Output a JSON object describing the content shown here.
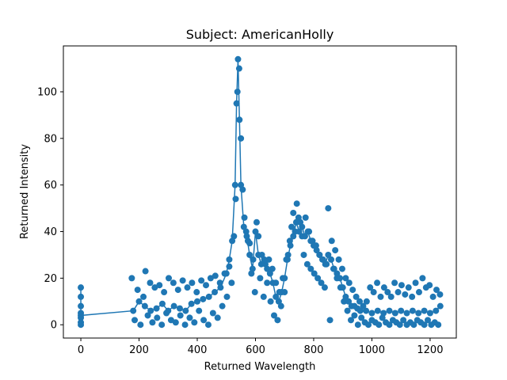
{
  "chart_data": {
    "type": "scatter",
    "title": "Subject: AmericanHolly",
    "xlabel": "Returned Wavelength",
    "ylabel": "Returned Intensity",
    "xlim": [
      -60,
      1290
    ],
    "ylim": [
      -5.7,
      119.7
    ],
    "xticks": [
      0,
      200,
      400,
      600,
      800,
      1000,
      1200
    ],
    "yticks": [
      0,
      20,
      40,
      60,
      80,
      100
    ],
    "grid": false,
    "legend": "none",
    "color": "#1f77b4",
    "series": [
      {
        "style": "line-with-markers",
        "x": [
          0,
          0,
          0,
          0,
          0,
          0,
          0,
          0,
          180,
          200,
          220,
          240,
          260,
          280,
          300,
          320,
          340,
          360,
          380,
          400,
          420,
          440,
          460,
          480,
          500,
          510,
          520,
          530,
          535,
          540,
          545,
          550,
          560,
          570,
          580,
          590,
          600,
          610,
          620,
          630,
          640,
          650,
          660,
          670,
          680,
          690,
          700,
          710,
          720,
          730,
          740,
          750,
          760,
          770,
          780,
          790,
          800,
          810,
          820,
          830,
          840,
          850,
          860,
          870,
          880,
          890,
          900,
          910,
          920,
          930,
          940,
          950,
          960,
          980,
          1000,
          1020,
          1040,
          1060,
          1080,
          1100,
          1120,
          1140,
          1160,
          1180,
          1200,
          1220,
          1235
        ],
        "y": [
          16,
          12,
          8,
          5,
          3,
          1,
          0,
          4,
          6,
          10,
          8,
          6,
          7,
          9,
          6,
          8,
          7,
          6,
          9,
          10,
          11,
          12,
          14,
          16,
          22,
          28,
          36,
          60,
          95,
          114,
          88,
          60,
          42,
          38,
          30,
          24,
          40,
          30,
          26,
          28,
          24,
          22,
          18,
          12,
          10,
          14,
          20,
          28,
          34,
          38,
          44,
          40,
          42,
          38,
          40,
          36,
          34,
          32,
          30,
          28,
          26,
          30,
          28,
          24,
          22,
          20,
          16,
          12,
          10,
          8,
          8,
          7,
          6,
          6,
          5,
          6,
          5,
          6,
          5,
          6,
          5,
          6,
          5,
          6,
          5,
          6,
          8
        ]
      }
    ],
    "scatter_noise": {
      "x": [
        175,
        185,
        195,
        205,
        215,
        222,
        230,
        238,
        246,
        254,
        262,
        270,
        278,
        286,
        294,
        302,
        310,
        318,
        326,
        334,
        342,
        350,
        358,
        366,
        374,
        382,
        390,
        398,
        406,
        414,
        422,
        430,
        438,
        446,
        454,
        462,
        470,
        478,
        486,
        494,
        502,
        510,
        518,
        526,
        532,
        538,
        544,
        550,
        556,
        562,
        568,
        574,
        580,
        586,
        592,
        598,
        604,
        610,
        616,
        622,
        628,
        634,
        640,
        646,
        652,
        658,
        664,
        670,
        676,
        682,
        688,
        694,
        700,
        706,
        712,
        718,
        724,
        730,
        736,
        742,
        748,
        754,
        760,
        766,
        772,
        778,
        784,
        790,
        796,
        802,
        808,
        814,
        820,
        826,
        832,
        838,
        844,
        850,
        856,
        862,
        868,
        874,
        880,
        886,
        892,
        898,
        904,
        910,
        916,
        922,
        928,
        934,
        940,
        946,
        952,
        958,
        964,
        970,
        976,
        982,
        988,
        994,
        1000,
        1006,
        1012,
        1018,
        1024,
        1030,
        1036,
        1042,
        1048,
        1054,
        1060,
        1066,
        1072,
        1078,
        1084,
        1090,
        1096,
        1102,
        1108,
        1114,
        1120,
        1126,
        1132,
        1138,
        1144,
        1150,
        1156,
        1162,
        1168,
        1174,
        1180,
        1186,
        1192,
        1198,
        1204,
        1210,
        1216,
        1222,
        1228,
        1234
      ],
      "y": [
        20,
        2,
        15,
        0,
        12,
        23,
        4,
        18,
        1,
        16,
        3,
        17,
        0,
        14,
        5,
        20,
        2,
        18,
        1,
        15,
        4,
        19,
        0,
        16,
        3,
        18,
        1,
        14,
        6,
        19,
        2,
        17,
        0,
        20,
        5,
        21,
        3,
        18,
        8,
        22,
        12,
        25,
        18,
        38,
        54,
        100,
        110,
        80,
        58,
        46,
        40,
        36,
        35,
        22,
        28,
        14,
        44,
        38,
        20,
        30,
        12,
        26,
        18,
        28,
        10,
        24,
        4,
        18,
        2,
        14,
        8,
        20,
        14,
        28,
        30,
        36,
        42,
        48,
        40,
        52,
        46,
        44,
        38,
        30,
        46,
        26,
        40,
        24,
        36,
        22,
        34,
        20,
        30,
        18,
        28,
        16,
        26,
        50,
        2,
        36,
        24,
        32,
        20,
        28,
        16,
        24,
        10,
        20,
        6,
        18,
        2,
        15,
        4,
        12,
        0,
        10,
        3,
        8,
        1,
        10,
        0,
        16,
        2,
        14,
        1,
        18,
        0,
        12,
        3,
        16,
        1,
        14,
        0,
        12,
        2,
        18,
        1,
        14,
        0,
        17,
        2,
        13,
        0,
        16,
        1,
        12,
        0,
        18,
        2,
        14,
        1,
        20,
        0,
        16,
        2,
        17,
        0,
        12,
        1,
        15,
        0,
        13
      ]
    }
  }
}
